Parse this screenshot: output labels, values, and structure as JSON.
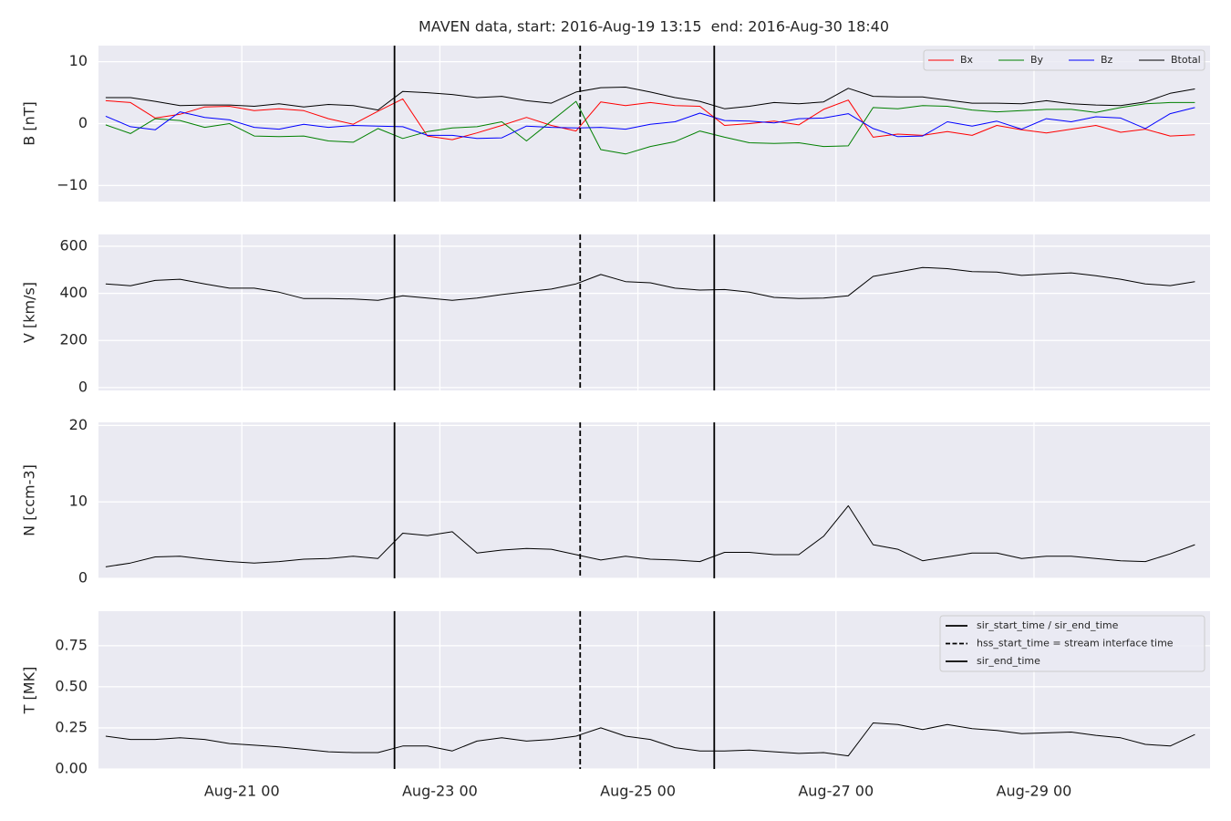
{
  "chart_data": {
    "type": "line",
    "title": "MAVEN data, start: 2016-Aug-19 13:15  end: 2016-Aug-30 18:40",
    "xlim": [
      "2016-08-19 13:15",
      "2016-08-30 18:40"
    ],
    "xticks": [
      {
        "value": "2016-08-21 00:00",
        "label": "Aug-21 00"
      },
      {
        "value": "2016-08-23 00:00",
        "label": "Aug-23 00"
      },
      {
        "value": "2016-08-25 00:00",
        "label": "Aug-25 00"
      },
      {
        "value": "2016-08-27 00:00",
        "label": "Aug-27 00"
      },
      {
        "value": "2016-08-29 00:00",
        "label": "Aug-29 00"
      }
    ],
    "grid": true,
    "x": [
      "2016-08-19 15:00",
      "2016-08-19 21:00",
      "2016-08-20 03:00",
      "2016-08-20 09:00",
      "2016-08-20 15:00",
      "2016-08-20 21:00",
      "2016-08-21 03:00",
      "2016-08-21 09:00",
      "2016-08-21 15:00",
      "2016-08-21 21:00",
      "2016-08-22 03:00",
      "2016-08-22 09:00",
      "2016-08-22 15:00",
      "2016-08-22 21:00",
      "2016-08-23 03:00",
      "2016-08-23 09:00",
      "2016-08-23 15:00",
      "2016-08-23 21:00",
      "2016-08-24 03:00",
      "2016-08-24 09:00",
      "2016-08-24 15:00",
      "2016-08-24 21:00",
      "2016-08-25 03:00",
      "2016-08-25 09:00",
      "2016-08-25 15:00",
      "2016-08-25 21:00",
      "2016-08-26 03:00",
      "2016-08-26 09:00",
      "2016-08-26 15:00",
      "2016-08-26 21:00",
      "2016-08-27 03:00",
      "2016-08-27 09:00",
      "2016-08-27 15:00",
      "2016-08-27 21:00",
      "2016-08-28 03:00",
      "2016-08-28 09:00",
      "2016-08-28 15:00",
      "2016-08-28 21:00",
      "2016-08-29 03:00",
      "2016-08-29 09:00",
      "2016-08-29 15:00",
      "2016-08-29 21:00",
      "2016-08-30 03:00",
      "2016-08-30 09:00",
      "2016-08-30 15:00"
    ],
    "events": [
      {
        "name": "sir_start_time / sir_end_time",
        "x": "2016-08-22 13:00",
        "style": "solid",
        "color": "#000000"
      },
      {
        "name": "hss_start_time = stream interface time",
        "x": "2016-08-24 10:00",
        "style": "dashed",
        "color": "#000000"
      },
      {
        "name": "sir_end_time",
        "x": "2016-08-25 18:30",
        "style": "solid",
        "color": "#000000"
      }
    ],
    "panels": [
      {
        "ylabel": "B [nT]",
        "ylim": [
          -12.6,
          12.6
        ],
        "yticks": [
          {
            "value": -10,
            "label": "−10"
          },
          0,
          10
        ],
        "legend": "upper right",
        "series": [
          {
            "name": "Bx",
            "color": "#ff0000",
            "values": [
              3.7,
              3.4,
              0.9,
              1.5,
              2.7,
              2.8,
              2.1,
              2.4,
              2.1,
              0.8,
              -0.1,
              2.0,
              4.0,
              -2.0,
              -2.6,
              -1.5,
              -0.3,
              1.0,
              -0.3,
              -1.2,
              3.5,
              2.9,
              3.4,
              2.9,
              2.8,
              -0.3,
              0.0,
              0.4,
              -0.2,
              2.3,
              3.8,
              -2.2,
              -1.7,
              -1.9,
              -1.3,
              -1.9,
              -0.3,
              -1.0,
              -1.5,
              -0.9,
              -0.3,
              -1.4,
              -0.9,
              -2.0,
              -1.8
            ]
          },
          {
            "name": "By",
            "color": "#008000",
            "values": [
              -0.2,
              -1.6,
              0.8,
              0.5,
              -0.6,
              0,
              -2.0,
              -2.1,
              -2.0,
              -2.8,
              -3.0,
              -0.8,
              -2.4,
              -1.3,
              -0.7,
              -0.5,
              0.3,
              -2.8,
              0.4,
              3.6,
              -4.2,
              -4.9,
              -3.7,
              -2.9,
              -1.2,
              -2.2,
              -3.1,
              -3.2,
              -3.1,
              -3.7,
              -3.6,
              2.6,
              2.4,
              2.9,
              2.8,
              2.2,
              1.9,
              2.1,
              2.3,
              2.3,
              1.8,
              2.6,
              3.2,
              3.4,
              3.4
            ]
          },
          {
            "name": "Bz",
            "color": "#0000ff",
            "values": [
              1.2,
              -0.5,
              -1.0,
              1.9,
              1.0,
              0.6,
              -0.6,
              -0.9,
              -0.1,
              -0.6,
              -0.3,
              -0.4,
              -0.5,
              -1.9,
              -1.9,
              -2.4,
              -2.3,
              -0.4,
              -0.6,
              -0.7,
              -0.6,
              -0.9,
              -0.1,
              0.3,
              1.7,
              0.5,
              0.4,
              0.1,
              0.8,
              0.9,
              1.6,
              -0.8,
              -2.1,
              -2.0,
              0.3,
              -0.4,
              0.4,
              -0.9,
              0.8,
              0.3,
              1.1,
              0.9,
              -0.8,
              1.6,
              2.6
            ]
          },
          {
            "name": "Btotal",
            "color": "#000000",
            "values": [
              4.2,
              4.2,
              3.6,
              2.9,
              3.0,
              3.0,
              2.8,
              3.2,
              2.7,
              3.1,
              2.9,
              2.2,
              5.2,
              5.0,
              4.7,
              4.2,
              4.4,
              3.7,
              3.3,
              5.1,
              5.8,
              5.9,
              5.1,
              4.2,
              3.6,
              2.4,
              2.8,
              3.4,
              3.2,
              3.5,
              5.7,
              4.4,
              4.3,
              4.3,
              3.8,
              3.3,
              3.3,
              3.2,
              3.7,
              3.2,
              3.0,
              2.9,
              3.5,
              4.9,
              5.6
            ]
          }
        ]
      },
      {
        "ylabel": "V [km/s]",
        "ylim": [
          -12,
          650
        ],
        "yticks": [
          0,
          200,
          400,
          600
        ],
        "series": [
          {
            "color": "#000000",
            "values": [
              440,
              432,
              455,
              460,
              440,
              422,
              422,
              405,
              378,
              378,
              376,
              370,
              390,
              380,
              370,
              380,
              395,
              407,
              418,
              440,
              480,
              450,
              445,
              422,
              414,
              416,
              405,
              383,
              378,
              380,
              390,
              472,
              490,
              510,
              505,
              492,
              490,
              476,
              482,
              487,
              475,
              460,
              440,
              433,
              450
            ]
          }
        ]
      },
      {
        "ylabel": "N [ccm-3]",
        "ylim": [
          0,
          20.4
        ],
        "yticks": [
          0,
          10,
          20
        ],
        "series": [
          {
            "color": "#000000",
            "values": [
              1.5,
              2.0,
              2.8,
              2.9,
              2.5,
              2.2,
              2.0,
              2.2,
              2.5,
              2.6,
              2.9,
              2.6,
              5.9,
              5.6,
              6.1,
              3.3,
              3.7,
              3.9,
              3.8,
              3.1,
              2.4,
              2.9,
              2.5,
              2.4,
              2.2,
              3.4,
              3.4,
              3.1,
              3.1,
              5.5,
              9.5,
              4.4,
              3.8,
              2.3,
              2.8,
              3.3,
              3.3,
              2.6,
              2.9,
              2.9,
              2.6,
              2.3,
              2.2,
              3.2,
              4.4
            ]
          }
        ]
      },
      {
        "ylabel": "T [MK]",
        "ylim": [
          0,
          0.96
        ],
        "yticks": [
          {
            "value": 0,
            "label": "0.00"
          },
          {
            "value": 0.25,
            "label": "0.25"
          },
          {
            "value": 0.5,
            "label": "0.50"
          },
          {
            "value": 0.75,
            "label": "0.75"
          }
        ],
        "events_legend": "upper right",
        "series": [
          {
            "color": "#000000",
            "values": [
              0.2,
              0.18,
              0.18,
              0.19,
              0.18,
              0.155,
              0.145,
              0.135,
              0.12,
              0.105,
              0.1,
              0.1,
              0.14,
              0.14,
              0.11,
              0.17,
              0.19,
              0.17,
              0.18,
              0.2,
              0.25,
              0.2,
              0.18,
              0.13,
              0.11,
              0.11,
              0.115,
              0.105,
              0.095,
              0.1,
              0.08,
              0.28,
              0.27,
              0.24,
              0.27,
              0.245,
              0.235,
              0.215,
              0.22,
              0.225,
              0.205,
              0.19,
              0.15,
              0.14,
              0.21
            ]
          }
        ]
      }
    ]
  }
}
